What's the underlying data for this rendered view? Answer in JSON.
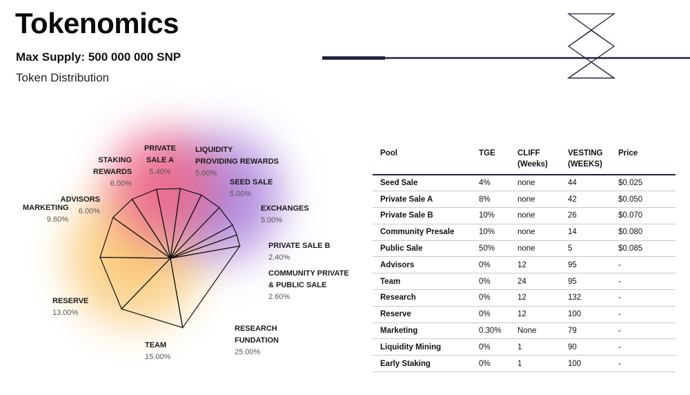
{
  "header": {
    "title": "Tokenomics",
    "max_supply": "Max Supply: 500 000 000 SNP",
    "subtitle": "Token Distribution"
  },
  "colors": {
    "navy": "#1b1f3b",
    "glow_pink": "#e8407a",
    "glow_purple": "#9b6ed6",
    "glow_orange": "#f7b24a"
  },
  "chart_data": {
    "type": "pie",
    "title": "Token Distribution",
    "slices": [
      {
        "name": "LIQUIDITY PROVIDING REWARDS",
        "value": 5.0,
        "label": "5.00%"
      },
      {
        "name": "SEED SALE",
        "value": 5.0,
        "label": "5.00%"
      },
      {
        "name": "EXCHANGES",
        "value": 5.0,
        "label": "5.00%"
      },
      {
        "name": "PRIVATE SALE B",
        "value": 2.4,
        "label": "2.40%"
      },
      {
        "name": "COMMUNITY PRIVATE & PUBLIC SALE",
        "value": 2.6,
        "label": "2.60%"
      },
      {
        "name": "RESEARCH FUNDATION",
        "value": 25.0,
        "label": "25.00%"
      },
      {
        "name": "TEAM",
        "value": 15.0,
        "label": "15.00%"
      },
      {
        "name": "RESERVE",
        "value": 13.0,
        "label": "13.00%"
      },
      {
        "name": "MARKETING",
        "value": 9.6,
        "label": "9.60%"
      },
      {
        "name": "ADVISORS",
        "value": 6.0,
        "label": "6.00%"
      },
      {
        "name": "STAKING REWARDS",
        "value": 6.0,
        "label": "6.00%"
      },
      {
        "name": "PRIVATE SALE A",
        "value": 5.4,
        "label": "5.40%"
      }
    ]
  },
  "labels": {
    "private_a": {
      "l1": "PRIVATE",
      "l2": "SALE A",
      "pct": "5.40%"
    },
    "liquidity": {
      "l1": "LIQUIDITY",
      "l2": "PROVIDING REWARDS",
      "pct": "5.00%"
    },
    "staking": {
      "l1": "STAKING",
      "l2": "REWARDS",
      "pct": "6.00%"
    },
    "seed": {
      "l1": "SEED SALE",
      "pct": "5.00%"
    },
    "advisors": {
      "l1": "ADVISORS",
      "pct": "6.00%"
    },
    "marketing": {
      "l1": "MARKETING",
      "pct": "9.60%"
    },
    "exchanges": {
      "l1": "EXCHANGES",
      "pct": "5.00%"
    },
    "private_b": {
      "l1": "PRIVATE SALE B",
      "pct": "2.40%"
    },
    "community": {
      "l1": "COMMUNITY PRIVATE",
      "l2": "& PUBLIC SALE",
      "pct": "2.60%"
    },
    "reserve": {
      "l1": "RESERVE",
      "pct": "13.00%"
    },
    "research": {
      "l1": "RESEARCH",
      "l2": "FUNDATION",
      "pct": "25.00%"
    },
    "team": {
      "l1": "TEAM",
      "pct": "15.00%"
    }
  },
  "table": {
    "headers": [
      "Pool",
      "TGE",
      "CLIFF\n(Weeks)",
      "VESTING\n(WEEKS)",
      "Price"
    ],
    "header_pool": "Pool",
    "header_tge": "TGE",
    "header_cliff_1": "CLIFF",
    "header_cliff_2": "(Weeks)",
    "header_vesting_1": "VESTING",
    "header_vesting_2": "(WEEKS)",
    "header_price": "Price",
    "rows": [
      [
        "Seed Sale",
        "4%",
        "none",
        "44",
        "$0.025"
      ],
      [
        "Private Sale A",
        "8%",
        "none",
        "42",
        "$0.050"
      ],
      [
        "Private Sale B",
        "10%",
        "none",
        "26",
        "$0.070"
      ],
      [
        "Community Presale",
        "10%",
        "none",
        "14",
        "$0.080"
      ],
      [
        "Public Sale",
        "50%",
        "none",
        "5",
        "$0.085"
      ],
      [
        "Advisors",
        "0%",
        "12",
        "95",
        "-"
      ],
      [
        "Team",
        "0%",
        "24",
        "95",
        "-"
      ],
      [
        "Research",
        "0%",
        "12",
        "132",
        "-"
      ],
      [
        "Reserve",
        "0%",
        "12",
        "100",
        "-"
      ],
      [
        "Marketing",
        "0.30%",
        "None",
        "79",
        "-"
      ],
      [
        "Liquidity Mining",
        "0%",
        "1",
        "90",
        "-"
      ],
      [
        "Early Staking",
        "0%",
        "1",
        "100",
        "-"
      ]
    ]
  }
}
